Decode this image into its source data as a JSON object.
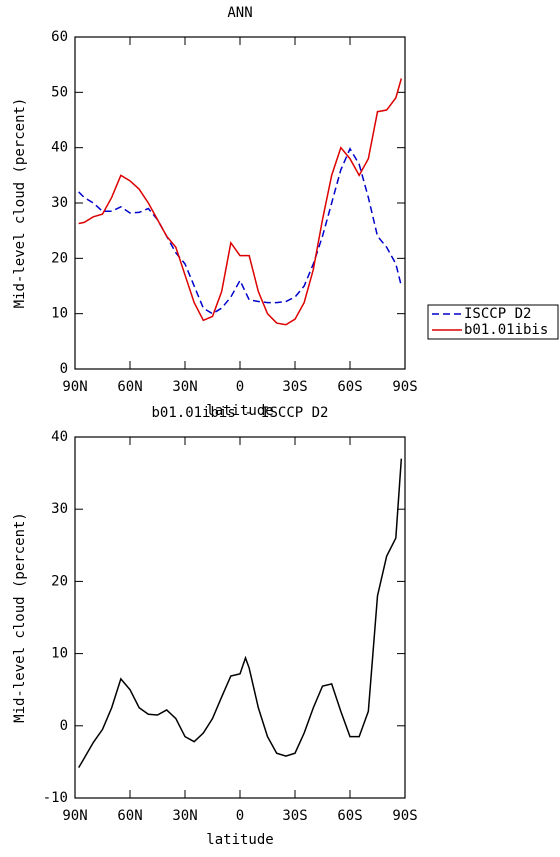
{
  "chart_data": [
    {
      "type": "line",
      "title": "ANN",
      "xlabel": "latitude",
      "ylabel": "Mid-level cloud (percent)",
      "x": [
        88,
        85,
        80,
        75,
        70,
        65,
        60,
        55,
        50,
        45,
        40,
        35,
        30,
        25,
        20,
        15,
        10,
        5,
        0,
        -5,
        -10,
        -15,
        -20,
        -25,
        -30,
        -35,
        -40,
        -45,
        -50,
        -55,
        -60,
        -65,
        -70,
        -75,
        -80,
        -85,
        -88
      ],
      "series": [
        {
          "name": "ISCCP D2",
          "color": "#0000cc",
          "dash": "dashed",
          "values": [
            32,
            31,
            30,
            28.5,
            28.5,
            29.3,
            28.2,
            28.3,
            29,
            27,
            24,
            21,
            19,
            15,
            11,
            10,
            11,
            13,
            16,
            12.5,
            12.2,
            12,
            12,
            12.2,
            13,
            15,
            19,
            24,
            30,
            36,
            39.8,
            37,
            31,
            24,
            22,
            19,
            15
          ]
        },
        {
          "name": "b01.01ibis",
          "color": "#dd0000",
          "dash": "solid",
          "values": [
            26.3,
            26.5,
            27.5,
            28,
            31,
            35,
            34,
            32.5,
            30,
            27,
            24,
            22,
            17,
            12,
            8.8,
            9.5,
            14,
            22.8,
            20.5,
            20.5,
            14,
            10,
            8.3,
            8,
            9,
            12,
            18,
            27,
            35,
            40,
            38,
            35,
            38,
            46.5,
            46.8,
            49,
            52.5
          ]
        }
      ],
      "xlim": [
        90,
        -90
      ],
      "xticks": [
        {
          "value": 90,
          "label": "90N"
        },
        {
          "value": 60,
          "label": "60N"
        },
        {
          "value": 30,
          "label": "30N"
        },
        0,
        {
          "value": -30,
          "label": "30S"
        },
        {
          "value": -60,
          "label": "60S"
        },
        {
          "value": -90,
          "label": "90S"
        }
      ],
      "ylim": [
        0,
        60
      ],
      "yticks": [
        0,
        10,
        20,
        30,
        40,
        50,
        60
      ],
      "legend": "outside right"
    },
    {
      "type": "line",
      "title": "b01.01ibis - ISCCP D2",
      "xlabel": "latitude",
      "ylabel": "Mid-level cloud (percent)",
      "x": [
        88,
        85,
        80,
        75,
        70,
        65,
        60,
        55,
        50,
        45,
        40,
        35,
        30,
        25,
        20,
        15,
        10,
        5,
        0,
        -3,
        -5,
        -10,
        -15,
        -20,
        -25,
        -30,
        -35,
        -40,
        -45,
        -50,
        -55,
        -60,
        -65,
        -70,
        -75,
        -80,
        -85,
        -88
      ],
      "series": [
        {
          "name": "b01.01ibis - ISCCP D2",
          "color": "#000000",
          "dash": "solid",
          "values": [
            -5.8,
            -4.5,
            -2.3,
            -0.5,
            2.5,
            6.5,
            5,
            2.5,
            1.6,
            1.5,
            2.2,
            1,
            -1.5,
            -2.2,
            -1,
            1,
            4,
            6.9,
            7.2,
            9.4,
            8,
            2.5,
            -1.5,
            -3.8,
            -4.2,
            -3.8,
            -1,
            2.5,
            5.5,
            5.8,
            2,
            -1.5,
            -1.5,
            2,
            18,
            23.5,
            26,
            37
          ]
        }
      ],
      "xlim": [
        90,
        -90
      ],
      "xticks": [
        {
          "value": 90,
          "label": "90N"
        },
        {
          "value": 60,
          "label": "60N"
        },
        {
          "value": 30,
          "label": "30N"
        },
        0,
        {
          "value": -30,
          "label": "30S"
        },
        {
          "value": -60,
          "label": "60S"
        },
        {
          "value": -90,
          "label": "90S"
        }
      ],
      "ylim": [
        -10,
        40
      ],
      "yticks": [
        -10,
        0,
        10,
        20,
        30,
        40
      ]
    }
  ]
}
